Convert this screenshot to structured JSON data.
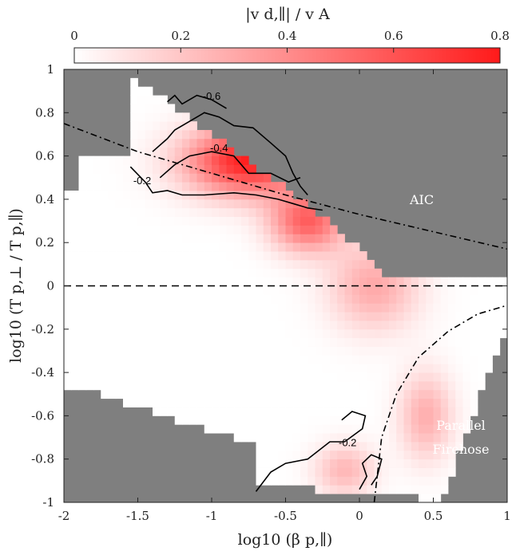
{
  "chart_data": {
    "type": "heatmap",
    "xlabel": "log10 (β p,∥)",
    "ylabel": "log10 (T p,⊥ / T p,∥)",
    "xlim": [
      -2,
      1
    ],
    "ylim": [
      -1,
      1
    ],
    "x_ticks": [
      "-2",
      "-1.5",
      "-1",
      "-0.5",
      "0",
      "0.5",
      "1"
    ],
    "y_ticks": [
      "1",
      "0.8",
      "0.6",
      "0.4",
      "0.2",
      "0",
      "-0.2",
      "-0.4",
      "-0.6",
      "-0.8",
      "-1"
    ],
    "colorbar": {
      "label": "|v d,∥| / v A",
      "ticks": [
        "0",
        "0.2",
        "0.4",
        "0.6",
        "0.8"
      ],
      "range": [
        0,
        0.8
      ],
      "color_min": "#ffffff",
      "color_max": "#ff1a1a"
    },
    "background_color": "#7f7f7f",
    "region_labels": [
      {
        "name": "aic",
        "text": "AIC"
      },
      {
        "name": "parallel-firehose-line1",
        "text": "Parallel"
      },
      {
        "name": "parallel-firehose-line2",
        "text": "Firehose"
      }
    ],
    "contour_labels": [
      "-0.6",
      "-0.4",
      "-0.2",
      "-0.2"
    ],
    "instability_thresholds": [
      {
        "name": "AIC",
        "style": "dash-dot",
        "x": [
          -2,
          -1.5,
          -1,
          -0.5,
          0,
          0.5,
          1
        ],
        "y": [
          0.75,
          0.62,
          0.52,
          0.42,
          0.33,
          0.25,
          0.17
        ]
      },
      {
        "name": "Parallel Firehose",
        "style": "dash-dot",
        "x": [
          0.1,
          0.15,
          0.25,
          0.4,
          0.6,
          0.8,
          1
        ],
        "y": [
          -1,
          -0.7,
          -0.5,
          -0.33,
          -0.21,
          -0.13,
          -0.09
        ]
      }
    ],
    "isotropy_line": {
      "y": 0,
      "style": "dashed"
    }
  }
}
